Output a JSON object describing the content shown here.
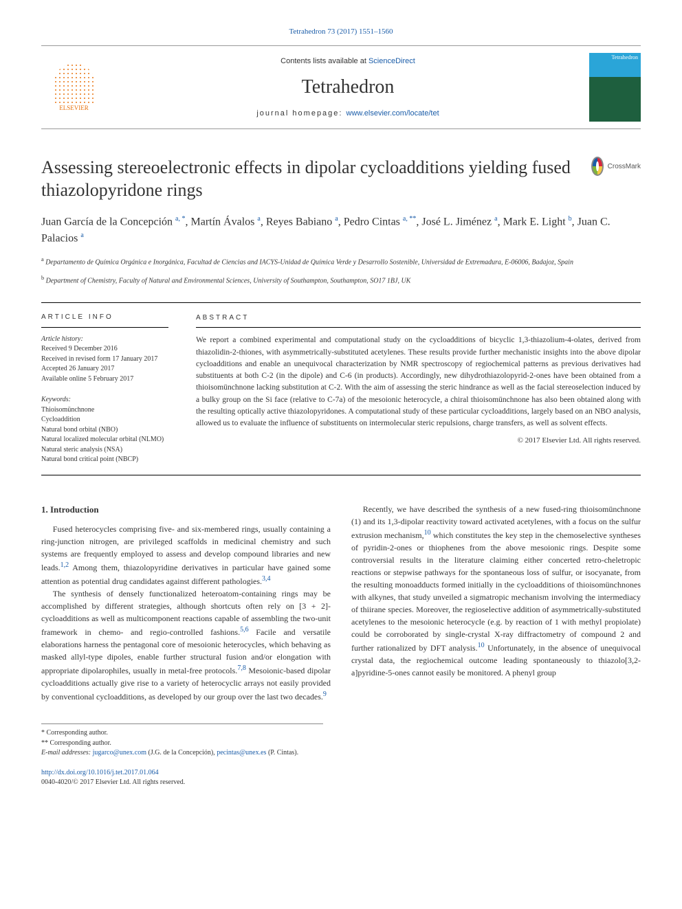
{
  "breadcrumb": "Tetrahedron 73 (2017) 1551–1560",
  "header": {
    "contents_prefix": "Contents lists available at ",
    "contents_link": "ScienceDirect",
    "journal_title": "Tetrahedron",
    "homepage_label": "journal homepage: ",
    "homepage_url": "www.elsevier.com/locate/tet",
    "publisher_name": "ELSEVIER",
    "cover_label": "Tetrahedron"
  },
  "crossmark": "CrossMark",
  "title": "Assessing stereoelectronic effects in dipolar cycloadditions yielding fused thiazolopyridone rings",
  "authors_html": "Juan García de la Concepción <sup>a, *</sup>, Martín Ávalos <sup>a</sup>, Reyes Babiano <sup>a</sup>, Pedro Cintas <sup>a, **</sup>, José L. Jiménez <sup>a</sup>, Mark E. Light <sup>b</sup>, Juan C. Palacios <sup>a</sup>",
  "affiliations": {
    "a": "Departamento de Química Orgánica e Inorgánica, Facultad de Ciencias and IACYS-Unidad de Química Verde y Desarrollo Sostenible, Universidad de Extremadura, E-06006, Badajoz, Spain",
    "b": "Department of Chemistry, Faculty of Natural and Environmental Sciences, University of Southampton, Southampton, SO17 1BJ, UK"
  },
  "article_info": {
    "heading": "ARTICLE INFO",
    "history_label": "Article history:",
    "received": "Received 9 December 2016",
    "revised": "Received in revised form 17 January 2017",
    "accepted": "Accepted 26 January 2017",
    "online": "Available online 5 February 2017",
    "keywords_label": "Keywords:",
    "keywords": [
      "Thioisomünchnone",
      "Cycloaddition",
      "Natural bond orbital (NBO)",
      "Natural localized molecular orbital (NLMO)",
      "Natural steric analysis (NSA)",
      "Natural bond critical point (NBCP)"
    ]
  },
  "abstract": {
    "heading": "ABSTRACT",
    "text": "We report a combined experimental and computational study on the cycloadditions of bicyclic 1,3-thiazolium-4-olates, derived from thiazolidin-2-thiones, with asymmetrically-substituted acetylenes. These results provide further mechanistic insights into the above dipolar cycloadditions and enable an unequivocal characterization by NMR spectroscopy of regiochemical patterns as previous derivatives had substituents at both C-2 (in the dipole) and C-6 (in products). Accordingly, new dihydrothiazolopyrid-2-ones have been obtained from a thioisomünchnone lacking substitution at C-2. With the aim of assessing the steric hindrance as well as the facial stereoselection induced by a bulky group on the Si face (relative to C-7a) of the mesoionic heterocycle, a chiral thioisomünchnone has also been obtained along with the resulting optically active thiazolopyridones. A computational study of these particular cycloadditions, largely based on an NBO analysis, allowed us to evaluate the influence of substituents on intermolecular steric repulsions, charge transfers, as well as solvent effects.",
    "copyright": "© 2017 Elsevier Ltd. All rights reserved."
  },
  "body": {
    "intro_heading": "1. Introduction",
    "p1": "Fused heterocycles comprising five- and six-membered rings, usually containing a ring-junction nitrogen, are privileged scaffolds in medicinal chemistry and such systems are frequently employed to assess and develop compound libraries and new leads.",
    "p1_ref": "1,2",
    "p1b": " Among them, thiazolopyridine derivatives in particular have gained some attention as potential drug candidates against different pathologies.",
    "p1b_ref": "3,4",
    "p2": "The synthesis of densely functionalized heteroatom-containing rings may be accomplished by different strategies, although shortcuts often rely on [3 + 2]-cycloadditions as well as multicomponent reactions capable of assembling the two-unit framework in chemo- and regio-controlled fashions.",
    "p2_ref": "5,6",
    "p2b": " Facile and versatile elaborations harness the pentagonal core of mesoionic heterocycles, which behaving as masked allyl-type dipoles, enable further structural fusion and/or elongation with appropriate dipolarophiles, usually in metal-free protocols.",
    "p2b_ref": "7,8",
    "p2c": " Mesoionic-based dipolar cycloadditions actually give rise to a variety of heterocyclic arrays not easily provided by conventional cycloadditions, as developed by our group over the last two decades.",
    "p2c_ref": "9",
    "p3": "Recently, we have described the synthesis of a new fused-ring thioisomünchnone (1) and its 1,3-dipolar reactivity toward activated acetylenes, with a focus on the sulfur extrusion mechanism,",
    "p3_ref": "10",
    "p3b": " which constitutes the key step in the chemoselective syntheses of pyridin-2-ones or thiophenes from the above mesoionic rings. Despite some controversial results in the literature claiming either concerted retro-cheletropic reactions or stepwise pathways for the spontaneous loss of sulfur, or isocyanate, from the resulting monoadducts formed initially in the cycloadditions of thioisomünchnones with alkynes, that study unveiled a sigmatropic mechanism involving the intermediacy of thiirane species. Moreover, the regioselective addition of asymmetrically-substituted acetylenes to the mesoionic heterocycle (e.g. by reaction of 1 with methyl propiolate) could be corroborated by single-crystal X-ray diffractometry of compound 2 and further rationalized by DFT analysis.",
    "p3b_ref": "10",
    "p3c": " Unfortunately, in the absence of unequivocal crystal data, the regiochemical outcome leading spontaneously to thiazolo[3,2-a]pyridine-5-ones cannot easily be monitored. A phenyl group"
  },
  "footnotes": {
    "corr1": "* Corresponding author.",
    "corr2": "** Corresponding author.",
    "email_label": "E-mail addresses: ",
    "email1": "jugarco@unex.com",
    "email1_name": " (J.G. de la Concepción), ",
    "email2": "pecintas@unex.es",
    "email2_name": " (P. Cintas)."
  },
  "doi": {
    "url": "http://dx.doi.org/10.1016/j.tet.2017.01.064",
    "issn_line": "0040-4020/© 2017 Elsevier Ltd. All rights reserved."
  },
  "colors": {
    "link": "#1a5ca8",
    "publisher": "#e8720d",
    "text": "#333333"
  }
}
